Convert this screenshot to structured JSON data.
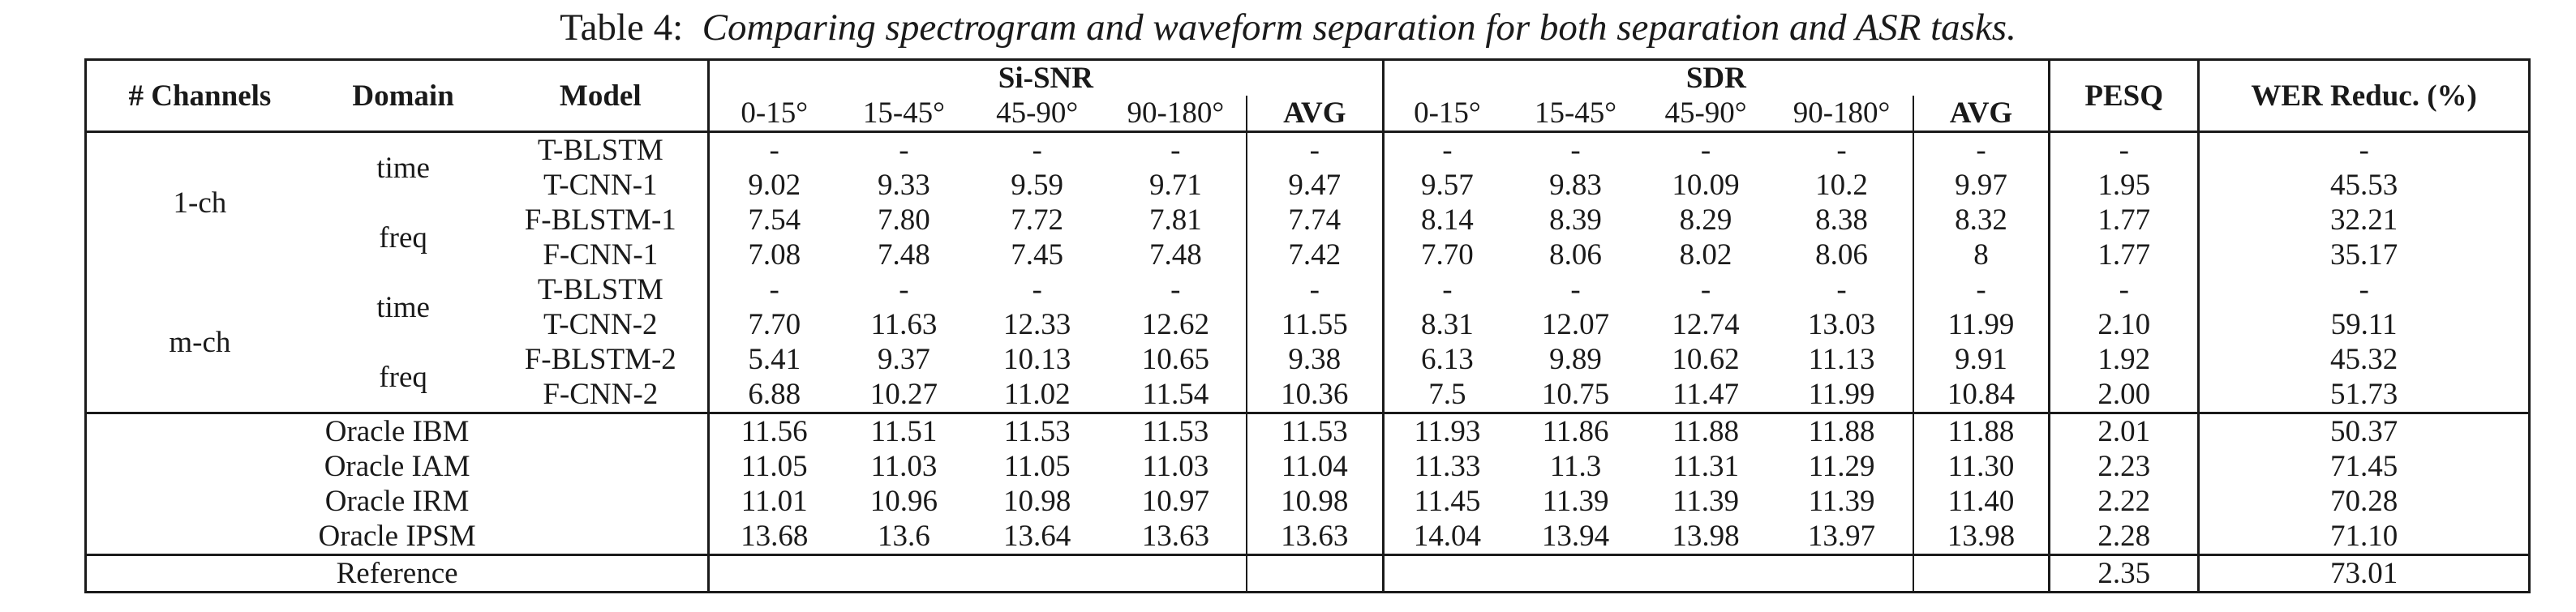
{
  "caption": {
    "label": "Table 4:",
    "text": "Comparing spectrogram and waveform separation for both separation and ASR tasks."
  },
  "header": {
    "channels": "# Channels",
    "domain": "Domain",
    "model": "Model",
    "sisnr": "Si-SNR",
    "sdr": "SDR",
    "pesq": "PESQ",
    "wer": "WER Reduc. (%)",
    "sub": [
      "0-15°",
      "15-45°",
      "45-90°",
      "90-180°",
      "AVG"
    ]
  },
  "groups": {
    "ch1": "1-ch",
    "mch": "m-ch",
    "time": "time",
    "freq": "freq"
  },
  "rows": [
    {
      "model": "T-BLSTM",
      "v": [
        "-",
        "-",
        "-",
        "-",
        "-",
        "-",
        "-",
        "-",
        "-",
        "-",
        "-",
        "-"
      ]
    },
    {
      "model": "T-CNN-1",
      "v": [
        "9.02",
        "9.33",
        "9.59",
        "9.71",
        "9.47",
        "9.57",
        "9.83",
        "10.09",
        "10.2",
        "9.97",
        "1.95",
        "45.53"
      ]
    },
    {
      "model": "F-BLSTM-1",
      "v": [
        "7.54",
        "7.80",
        "7.72",
        "7.81",
        "7.74",
        "8.14",
        "8.39",
        "8.29",
        "8.38",
        "8.32",
        "1.77",
        "32.21"
      ]
    },
    {
      "model": "F-CNN-1",
      "v": [
        "7.08",
        "7.48",
        "7.45",
        "7.48",
        "7.42",
        "7.70",
        "8.06",
        "8.02",
        "8.06",
        "8",
        "1.77",
        "35.17"
      ]
    },
    {
      "model": "T-BLSTM",
      "v": [
        "-",
        "-",
        "-",
        "-",
        "-",
        "-",
        "-",
        "-",
        "-",
        "-",
        "-",
        "-"
      ]
    },
    {
      "model": "T-CNN-2",
      "v": [
        "7.70",
        "11.63",
        "12.33",
        "12.62",
        "11.55",
        "8.31",
        "12.07",
        "12.74",
        "13.03",
        "11.99",
        "2.10",
        "59.11"
      ]
    },
    {
      "model": "F-BLSTM-2",
      "v": [
        "5.41",
        "9.37",
        "10.13",
        "10.65",
        "9.38",
        "6.13",
        "9.89",
        "10.62",
        "11.13",
        "9.91",
        "1.92",
        "45.32"
      ]
    },
    {
      "model": "F-CNN-2",
      "v": [
        "6.88",
        "10.27",
        "11.02",
        "11.54",
        "10.36",
        "7.5",
        "10.75",
        "11.47",
        "11.99",
        "10.84",
        "2.00",
        "51.73"
      ]
    }
  ],
  "oracle": [
    {
      "model": "Oracle IBM",
      "v": [
        "11.56",
        "11.51",
        "11.53",
        "11.53",
        "11.53",
        "11.93",
        "11.86",
        "11.88",
        "11.88",
        "11.88",
        "2.01",
        "50.37"
      ]
    },
    {
      "model": "Oracle IAM",
      "v": [
        "11.05",
        "11.03",
        "11.05",
        "11.03",
        "11.04",
        "11.33",
        "11.3",
        "11.31",
        "11.29",
        "11.30",
        "2.23",
        "71.45"
      ]
    },
    {
      "model": "Oracle IRM",
      "v": [
        "11.01",
        "10.96",
        "10.98",
        "10.97",
        "10.98",
        "11.45",
        "11.39",
        "11.39",
        "11.39",
        "11.40",
        "2.22",
        "70.28"
      ]
    },
    {
      "model": "Oracle IPSM",
      "v": [
        "13.68",
        "13.6",
        "13.64",
        "13.63",
        "13.63",
        "14.04",
        "13.94",
        "13.98",
        "13.97",
        "13.98",
        "2.28",
        "71.10"
      ]
    }
  ],
  "reference": {
    "label": "Reference",
    "pesq": "2.35",
    "wer": "73.01"
  }
}
